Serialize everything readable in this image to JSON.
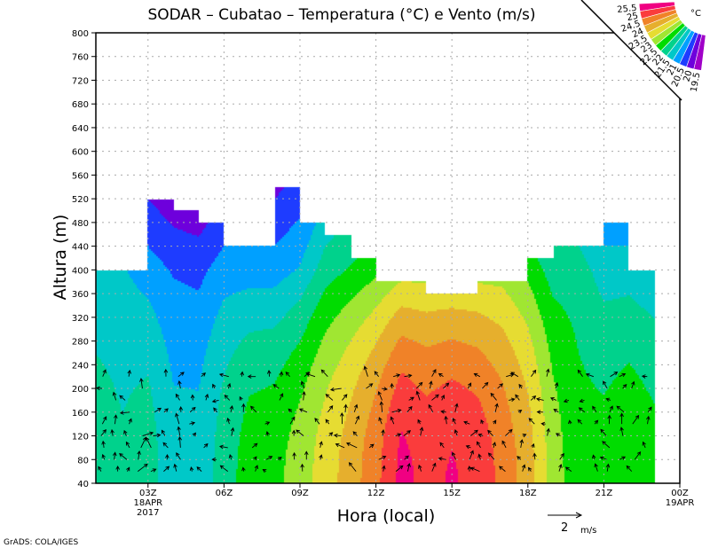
{
  "chart_data": {
    "type": "heatmap",
    "title": "SODAR – Cubatao – Temperatura (°C) e Vento (m/s)",
    "xlabel": "Hora (local)",
    "ylabel": "Altura (m)",
    "ylim": [
      40,
      800
    ],
    "yticks": [
      "40",
      "80",
      "120",
      "160",
      "200",
      "240",
      "280",
      "320",
      "360",
      "400",
      "440",
      "480",
      "520",
      "560",
      "600",
      "640",
      "680",
      "720",
      "760",
      "800"
    ],
    "xlim_hours": [
      0.94,
      24
    ],
    "xticks": [
      {
        "hour": 3,
        "label": "03Z",
        "sub1": "18APR",
        "sub2": "2017"
      },
      {
        "hour": 6,
        "label": "06Z"
      },
      {
        "hour": 9,
        "label": "09Z"
      },
      {
        "hour": 12,
        "label": "12Z"
      },
      {
        "hour": 15,
        "label": "15Z"
      },
      {
        "hour": 18,
        "label": "18Z"
      },
      {
        "hour": 21,
        "label": "21Z"
      },
      {
        "hour": 24,
        "label": "00Z",
        "sub1": "19APR"
      }
    ],
    "grid": true,
    "legend": {
      "placement": "top-right",
      "unit": "°C",
      "levels": [
        "19.5",
        "20",
        "20.5",
        "21",
        "21.5",
        "22",
        "22.5",
        "23",
        "23.5",
        "24",
        "24.5",
        "25",
        "25.5"
      ],
      "colors": [
        "#a000c8",
        "#6e00dc",
        "#1e3cff",
        "#00a0ff",
        "#00c8c8",
        "#00d28c",
        "#00dc00",
        "#a0e632",
        "#e6dc32",
        "#e6af2d",
        "#f08228",
        "#fa3c3c",
        "#f00082"
      ]
    },
    "temperature_hours": [
      1,
      2,
      3,
      4,
      5,
      6,
      7,
      8,
      9,
      10,
      11,
      12,
      13,
      14,
      15,
      16,
      17,
      18,
      19,
      20,
      21,
      22,
      23
    ],
    "temperature_40m": [
      22,
      21.8,
      22,
      21.4,
      21.4,
      22,
      22.5,
      22.6,
      23,
      23.5,
      24,
      24.6,
      25.4,
      25.1,
      25.3,
      25.1,
      24.6,
      24,
      23,
      22.4,
      22.4,
      22.6,
      22.4
    ],
    "temperature_400m": [
      21.3,
      21.3,
      21,
      20.7,
      20.6,
      21,
      21,
      21,
      21.3,
      22,
      22.3,
      22.6,
      23,
      23,
      23,
      23,
      23,
      22.6,
      22,
      22,
      21.5,
      21.5,
      21.3
    ],
    "data_top_segments": [
      [
        0.94,
        3,
        400
      ],
      [
        3,
        4,
        520
      ],
      [
        4,
        5,
        500
      ],
      [
        5,
        6,
        480
      ],
      [
        6,
        8,
        440
      ],
      [
        8,
        9,
        540
      ],
      [
        9,
        10,
        480
      ],
      [
        10,
        11,
        460
      ],
      [
        11,
        12,
        420
      ],
      [
        12,
        14,
        380
      ],
      [
        14,
        16,
        360
      ],
      [
        16,
        18,
        380
      ],
      [
        18,
        19,
        420
      ],
      [
        19,
        21,
        440
      ],
      [
        21,
        22,
        480
      ],
      [
        22,
        23,
        400
      ]
    ],
    "wind_direction_deg": [
      200,
      210,
      160,
      190,
      170,
      220,
      200,
      180,
      190,
      200,
      210,
      150,
      160,
      180,
      200,
      190,
      170,
      180,
      200,
      220,
      190,
      170,
      200
    ],
    "wind_speed_ms": [
      0.8,
      0.7,
      0.9,
      0.8,
      0.6,
      0.7,
      0.6,
      0.6,
      0.7,
      0.8,
      0.9,
      0.8,
      0.8,
      0.7,
      0.8,
      0.7,
      0.7,
      0.6,
      0.6,
      0.6,
      0.7,
      0.8,
      0.7
    ],
    "wind_scale": {
      "value": "2",
      "unit": "m/s"
    }
  },
  "footer": {
    "credit": "GrADS: COLA/IGES"
  }
}
